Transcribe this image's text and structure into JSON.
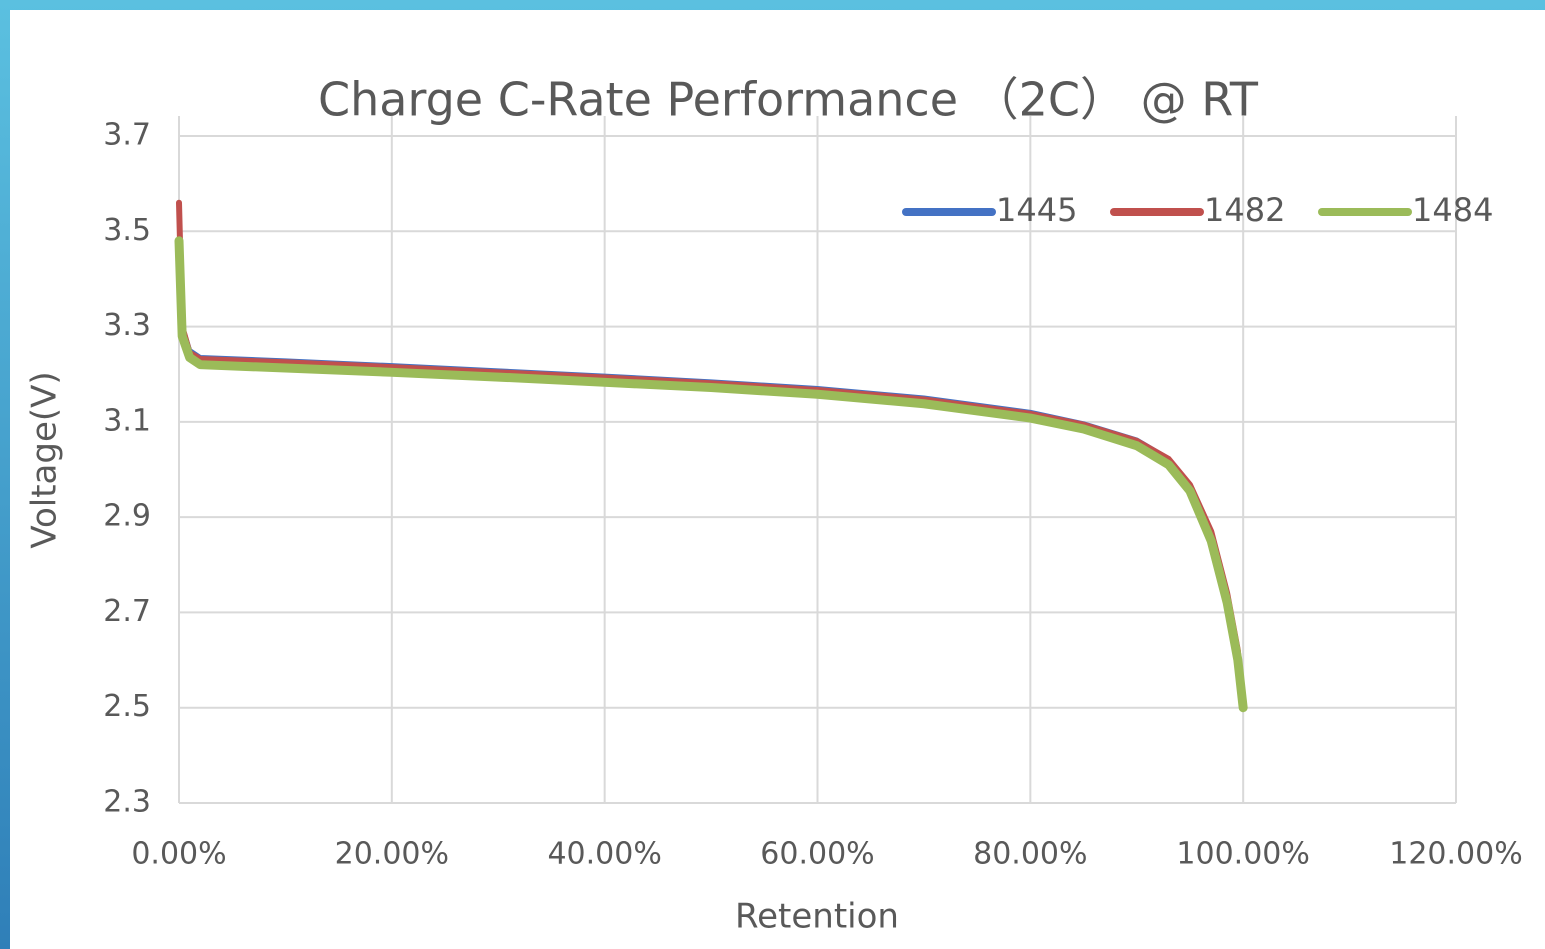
{
  "chart_data": {
    "type": "line",
    "title": "Charge C-Rate Performance （2C） @ RT",
    "x_label": "Retention",
    "y_label": "Voltage(V)",
    "x": [
      0,
      0.3,
      1,
      2,
      10,
      20,
      30,
      40,
      50,
      60,
      70,
      80,
      85,
      90,
      93,
      95,
      97,
      98.5,
      99.5,
      100
    ],
    "series": [
      {
        "name": "1445",
        "color": "#4472c4",
        "values": [
          3.48,
          3.3,
          3.25,
          3.235,
          3.228,
          3.218,
          3.207,
          3.196,
          3.184,
          3.17,
          3.15,
          3.12,
          3.096,
          3.062,
          3.022,
          2.965,
          2.86,
          2.73,
          2.61,
          2.5
        ]
      },
      {
        "name": "1482",
        "color": "#c0504d",
        "values": [
          3.56,
          3.3,
          3.245,
          3.232,
          3.225,
          3.215,
          3.204,
          3.193,
          3.181,
          3.167,
          3.147,
          3.117,
          3.094,
          3.06,
          3.022,
          2.968,
          2.87,
          2.74,
          2.62,
          2.5
        ]
      },
      {
        "name": "1484",
        "color": "#9bbb59",
        "values": [
          3.48,
          3.28,
          3.235,
          3.22,
          3.213,
          3.204,
          3.194,
          3.183,
          3.172,
          3.158,
          3.138,
          3.108,
          3.085,
          3.05,
          3.01,
          2.955,
          2.85,
          2.72,
          2.6,
          2.5
        ]
      }
    ],
    "xlim": [
      0,
      120
    ],
    "xticks": [
      {
        "value": 0,
        "label": "0.00%"
      },
      {
        "value": 20,
        "label": "20.00%"
      },
      {
        "value": 40,
        "label": "40.00%"
      },
      {
        "value": 60,
        "label": "60.00%"
      },
      {
        "value": 80,
        "label": "80.00%"
      },
      {
        "value": 100,
        "label": "100.00%"
      },
      {
        "value": 120,
        "label": "120.00%"
      }
    ],
    "ylim": [
      2.3,
      3.7
    ],
    "yticks": [
      2.3,
      2.5,
      2.7,
      2.9,
      3.1,
      3.3,
      3.5,
      3.7
    ],
    "grid": true,
    "legend": "top-right"
  }
}
